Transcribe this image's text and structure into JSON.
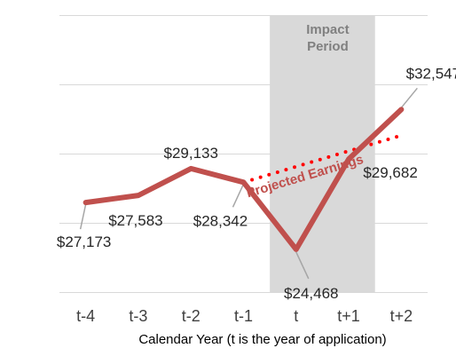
{
  "chart_data": {
    "type": "line",
    "categories": [
      "t-4",
      "t-3",
      "t-2",
      "t-1",
      "t",
      "t+1",
      "t+2"
    ],
    "xlabel": "Calendar Year (t is the year of application)",
    "ylabel": "",
    "ylim": [
      22000,
      38000
    ],
    "grid": true,
    "series": [
      {
        "values": [
          27173,
          27583,
          29133,
          28342,
          24468,
          29682,
          32547
        ],
        "labels": [
          "$27,173",
          "$27,583",
          "$29,133",
          "$28,342",
          "$24,468",
          "$29,682",
          "$32,547"
        ]
      },
      {
        "name": "Projected Earnings",
        "style": "dotted",
        "x": [
          "t-1",
          "t+2"
        ],
        "values": [
          28342,
          31050
        ]
      }
    ],
    "shaded_region": {
      "from": "t",
      "to": "t+1",
      "label": [
        "Impact",
        "Period"
      ]
    },
    "colors": {
      "actual": "#C0504D",
      "projected": "#FF0000",
      "shading": "#D9D9D9",
      "gridline": "#D9D9D9",
      "leader": "#A6A6A6"
    }
  }
}
